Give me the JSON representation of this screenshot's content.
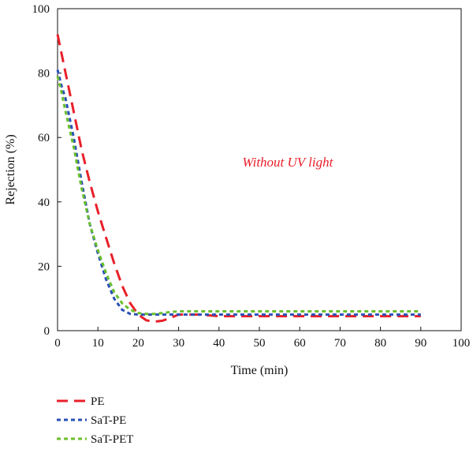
{
  "chart_data": {
    "type": "line",
    "title": "",
    "xlabel": "Time (min)",
    "ylabel": "Rejection (%)",
    "xlim": [
      0,
      100
    ],
    "ylim": [
      0,
      100
    ],
    "xticks": [
      0,
      10,
      20,
      30,
      40,
      50,
      60,
      70,
      80,
      90,
      100
    ],
    "yticks": [
      0,
      20,
      40,
      60,
      80,
      100
    ],
    "grid": false,
    "legend_position": "bottom-left",
    "annotation": {
      "text": "Without UV light",
      "x": 57,
      "y": 51,
      "color": "#e8202a"
    },
    "series": [
      {
        "name": "PE",
        "color": "#e8202a",
        "dash": "long",
        "x": [
          0,
          1,
          2,
          4,
          6,
          8,
          10,
          12,
          14,
          16,
          18,
          20,
          22,
          24,
          26,
          28,
          30,
          35,
          40,
          45,
          50,
          55,
          60,
          65,
          70,
          75,
          80,
          85,
          90
        ],
        "y": [
          92,
          86,
          80,
          68,
          56,
          46,
          37,
          29,
          21,
          14,
          8.5,
          5,
          3.2,
          2.8,
          3.1,
          4,
          5,
          5,
          4.5,
          4.5,
          4.5,
          4.5,
          4.5,
          4.5,
          4.5,
          4.5,
          4.5,
          4.5,
          4.5
        ]
      },
      {
        "name": "SaT-PE",
        "color": "#2a50b5",
        "dash": "short",
        "x": [
          0,
          1,
          2,
          4,
          6,
          8,
          10,
          12,
          14,
          16,
          18,
          20,
          22,
          24,
          26,
          28,
          30,
          35,
          40,
          45,
          50,
          55,
          60,
          65,
          70,
          75,
          80,
          85,
          90
        ],
        "y": [
          81,
          76,
          72,
          60,
          46,
          33,
          24,
          16,
          10,
          6.5,
          5.2,
          5,
          5,
          5,
          5,
          5,
          5,
          5,
          5,
          5,
          5,
          5,
          5,
          5,
          5,
          5,
          5,
          5,
          5
        ]
      },
      {
        "name": "SaT-PET",
        "color": "#6abf2e",
        "dash": "short",
        "x": [
          0,
          1,
          2,
          4,
          6,
          8,
          10,
          12,
          14,
          16,
          18,
          20,
          22,
          24,
          26,
          28,
          30,
          35,
          40,
          45,
          50,
          55,
          60,
          65,
          70,
          75,
          80,
          85,
          90
        ],
        "y": [
          79,
          74,
          68,
          57,
          44,
          33,
          25,
          18,
          12,
          8.5,
          6.5,
          5.5,
          5.2,
          5.2,
          5.5,
          5.8,
          6,
          6,
          6,
          6,
          6,
          6,
          6,
          6,
          6,
          6,
          6,
          6,
          6
        ]
      }
    ]
  }
}
